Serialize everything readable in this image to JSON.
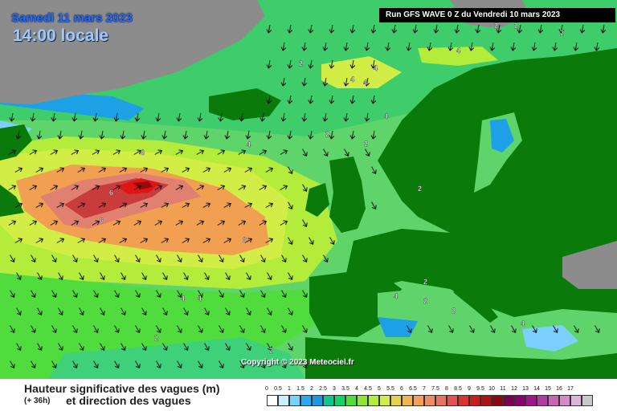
{
  "header": {
    "date": "Samedi 11 mars 2023",
    "time": "14:00 locale",
    "run": "Run GFS WAVE 0 Z du Vendredi 10 mars 2023"
  },
  "copyright": "Copyright © 2023 Meteociel.fr",
  "legend": {
    "title": "Hauteur significative des vagues (m)",
    "lead_time": "(+ 36h)",
    "subtitle": "et direction des vagues",
    "unit": "m",
    "scale": [
      {
        "label": "0",
        "color": "#ffffff"
      },
      {
        "label": "0.5",
        "color": "#c8f0ff"
      },
      {
        "label": "1",
        "color": "#78d2ff"
      },
      {
        "label": "1.5",
        "color": "#28aaf0"
      },
      {
        "label": "2",
        "color": "#1e96e6"
      },
      {
        "label": "2.5",
        "color": "#0fc88c"
      },
      {
        "label": "3",
        "color": "#14d264"
      },
      {
        "label": "3.5",
        "color": "#50dc3c"
      },
      {
        "label": "4",
        "color": "#8ce632"
      },
      {
        "label": "4.5",
        "color": "#b4ec3c"
      },
      {
        "label": "5",
        "color": "#d2ee46"
      },
      {
        "label": "5.5",
        "color": "#e6d250"
      },
      {
        "label": "6",
        "color": "#f0b450"
      },
      {
        "label": "6.5",
        "color": "#f5a05a"
      },
      {
        "label": "7",
        "color": "#f08c64"
      },
      {
        "label": "7.5",
        "color": "#e67364"
      },
      {
        "label": "8",
        "color": "#e65050"
      },
      {
        "label": "8.5",
        "color": "#dc3232"
      },
      {
        "label": "9",
        "color": "#c81e1e"
      },
      {
        "label": "9.5",
        "color": "#aa1414"
      },
      {
        "label": "10",
        "color": "#8c0a0a"
      },
      {
        "label": "11",
        "color": "#780050"
      },
      {
        "label": "12",
        "color": "#8c006e"
      },
      {
        "label": "13",
        "color": "#a0148c"
      },
      {
        "label": "14",
        "color": "#b43ca0"
      },
      {
        "label": "15",
        "color": "#c864b4"
      },
      {
        "label": "16",
        "color": "#d28cc8"
      },
      {
        "label": "17",
        "color": "#dcb4dc"
      },
      {
        "label": "",
        "color": "#c8c8c8"
      }
    ]
  },
  "contour_labels": [
    "2",
    "2",
    "2",
    "4",
    "4",
    "4",
    "4",
    "4",
    "2",
    "2",
    "6",
    "6",
    "6",
    "6",
    "4",
    "4",
    "4",
    "2",
    "2",
    "2",
    "4",
    "2",
    "2",
    "2",
    "4",
    "2"
  ],
  "colors": {
    "land": "#0a7a0a",
    "ice_land": "#8c8c8c",
    "arrow": "#111111"
  }
}
